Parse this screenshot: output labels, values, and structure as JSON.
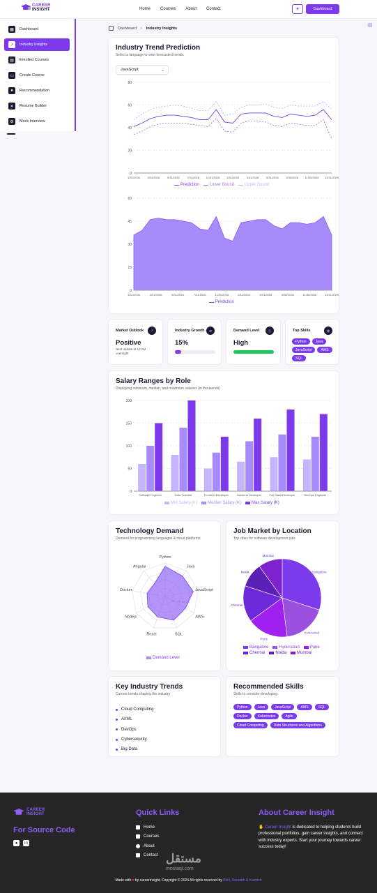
{
  "header": {
    "logo_line1": "CAREER",
    "logo_line2": "INSIGHT",
    "nav": [
      "Home",
      "Courses",
      "About",
      "Contact"
    ],
    "theme_icon": "sun-icon",
    "dashboard_label": "Dashboard"
  },
  "sidebar": {
    "items": [
      {
        "label": "Dashboard",
        "icon": "grid-icon",
        "active": false
      },
      {
        "label": "Industry Insights",
        "icon": "trend-icon",
        "active": true
      },
      {
        "label": "Enrolled Courses",
        "icon": "book-icon",
        "active": false
      },
      {
        "label": "Create Course",
        "icon": "file-icon",
        "active": false
      },
      {
        "label": "Recommendation",
        "icon": "user-icon",
        "active": false
      },
      {
        "label": "Resume Builder",
        "icon": "tools-icon",
        "active": false
      },
      {
        "label": "Mock Interview",
        "icon": "gear-icon",
        "active": false
      }
    ]
  },
  "breadcrumb": {
    "parent": "Dashboard",
    "current": "Industry Insights"
  },
  "trend": {
    "title": "Industry Trend Prediction",
    "subtitle": "Select a language to view forecasted trends.",
    "select_value": "JavaScript",
    "legend": [
      "Prediction",
      "Lower Bound",
      "Upper Bound"
    ],
    "area_legend": "Prediction"
  },
  "stats": {
    "outlook": {
      "title": "Market Outlook",
      "value": "Positive",
      "note": "Next update at 12 AM overnight"
    },
    "growth": {
      "title": "Industry Growth",
      "value": "15%",
      "progress": 0.15
    },
    "demand": {
      "title": "Demand Level",
      "value": "High",
      "progress": 1.0
    },
    "skills": {
      "title": "Top Skills",
      "items": [
        "Python",
        "Java",
        "JavaScript",
        "AWS",
        "SQL"
      ]
    }
  },
  "salary": {
    "title": "Salary Ranges by Role",
    "subtitle": "Displaying minimum, median, and maximum salaries (in thousands)",
    "legend": [
      "Min Salary (K)",
      "Median Salary (K)",
      "Max Salary (K)"
    ]
  },
  "tech": {
    "title": "Technology Demand",
    "subtitle": "Demand for programming languages & cloud platforms",
    "legend": "Demand Level"
  },
  "location": {
    "title": "Job Market by Location",
    "subtitle": "Top cities for software development jobs",
    "legend": [
      "Bangalore",
      "Hyderabad",
      "Pune",
      "Chennai",
      "Noida",
      "Mumbai"
    ]
  },
  "key_trends": {
    "title": "Key Industry Trends",
    "subtitle": "Current trends shaping the industry",
    "items": [
      "Cloud Computing",
      "AI/ML",
      "DevOps",
      "Cybersecurity",
      "Big Data"
    ]
  },
  "rec_skills": {
    "title": "Recommended Skills",
    "subtitle": "Skills to consider developing",
    "items": [
      "Python",
      "Java",
      "JavaScript",
      "AWS",
      "SQL",
      "Docker",
      "Kubernetes",
      "Agile",
      "Cloud Computing",
      "Data Structures and Algorithms"
    ]
  },
  "footer": {
    "source_label": "For Source Code",
    "quick_links_title": "Quick Links",
    "links": [
      "Home",
      "Courses",
      "About",
      "Contact"
    ],
    "about_title": "About Career Insight",
    "about_brand": "Career Insight",
    "about_text": " is dedicated to helping students build professional portfolios, gain career insights, and connect with industry experts. Start your journey towards career success today!",
    "copy_pre": "Made with",
    "copy_post": "by careerinsight, Copyright © 2024 All rights reserved by",
    "copy_names": "Binit, Saurabh & Kashish",
    "watermark": "مستقل",
    "watermark_sub": "mostaql.com"
  },
  "colors": {
    "accent": "#7c3aed",
    "light": "#c4b5fd",
    "mid": "#a78bfa",
    "green": "#22c55e"
  },
  "chart_data": [
    {
      "type": "line",
      "x": [
        "1/31/2026",
        "3/31/2026",
        "5/31/2026",
        "7/31/2026",
        "9/30/2026",
        "11/30/2026",
        "1/31/2027",
        "3/31/2027",
        "5/31/2027",
        "7/31/2027",
        "9/30/2027",
        "11/30/2027",
        "1/31/2028",
        "3/31/2028",
        "5/31/2028",
        "7/31/2028",
        "9/30/2028",
        "11/30/2028",
        "1/31/2029",
        "3/31/2029",
        "5/31/2029",
        "7/31/2029",
        "9/30/2029",
        "11/30/2029",
        "12/31/2029"
      ],
      "xticks": [
        "1/31/2026",
        "3/31/2026",
        "5/31/2026",
        "7/31/2026",
        "11/31/2026",
        "1/31/2028",
        "3/31/2028",
        "5/31/2028",
        "9/30/2028",
        "11/30/2028",
        "12/31/2029"
      ],
      "series": [
        {
          "name": "Prediction",
          "values": [
            41,
            44,
            48,
            50,
            51,
            51,
            50,
            49,
            47,
            47,
            56,
            45,
            44,
            52,
            53,
            53,
            53,
            50,
            49,
            52,
            51,
            50,
            51,
            56,
            47
          ]
        },
        {
          "name": "Lower Bound",
          "values": [
            34,
            37,
            41,
            43,
            44,
            44,
            44,
            43,
            42,
            41,
            48,
            37,
            36,
            44,
            46,
            46,
            45,
            42,
            41,
            44,
            43,
            42,
            42,
            47,
            30
          ]
        },
        {
          "name": "Upper Bound",
          "values": [
            47,
            52,
            56,
            58,
            59,
            60,
            59,
            57,
            55,
            55,
            63,
            51,
            52,
            58,
            60,
            60,
            61,
            58,
            57,
            60,
            59,
            59,
            59,
            63,
            56
          ]
        }
      ],
      "ylim": [
        0,
        80
      ],
      "yticks": [
        0,
        20,
        40,
        60,
        80
      ]
    },
    {
      "type": "area",
      "x": [
        "1/31/2026",
        "3/31/2026",
        "5/31/2026",
        "7/31/2026",
        "9/30/2026",
        "11/30/2026",
        "1/31/2027",
        "3/31/2027",
        "5/31/2027",
        "7/31/2027",
        "9/30/2027",
        "11/30/2027",
        "1/31/2028",
        "3/31/2028",
        "5/31/2028",
        "7/31/2028",
        "9/30/2028",
        "11/30/2028",
        "1/31/2029",
        "3/31/2029",
        "5/31/2029",
        "7/31/2029",
        "9/30/2029",
        "11/30/2029",
        "12/31/2029"
      ],
      "xticks": [
        "1/31/2026",
        "3/31/2026",
        "5/31/2026",
        "7/31/2026",
        "11/31/2026",
        "1/31/2028",
        "5/31/2028",
        "9/30/2028",
        "11/30/2028",
        "12/31/2029"
      ],
      "series": [
        {
          "name": "Prediction",
          "values": [
            36,
            39,
            46,
            47,
            46,
            46,
            45,
            44,
            40,
            39,
            48,
            34,
            32,
            44,
            45,
            46,
            46,
            42,
            40,
            44,
            44,
            43,
            44,
            48,
            36
          ]
        }
      ],
      "ylim": [
        0,
        60
      ],
      "yticks": [
        0,
        15,
        30,
        45,
        60
      ]
    },
    {
      "type": "bar",
      "categories": [
        "Software Engineer",
        "Data Scientist",
        "Frontend Developer",
        "Backend Developer",
        "Full Stack Developer",
        "DevOps Engineer"
      ],
      "series": [
        {
          "name": "Min Salary (K)",
          "values": [
            60,
            80,
            50,
            65,
            75,
            70
          ]
        },
        {
          "name": "Median Salary (K)",
          "values": [
            100,
            140,
            85,
            110,
            125,
            120
          ]
        },
        {
          "name": "Max Salary (K)",
          "values": [
            150,
            200,
            120,
            160,
            180,
            170
          ]
        }
      ],
      "ylim": [
        0,
        200
      ],
      "yticks": [
        0,
        50,
        100,
        150,
        200
      ]
    },
    {
      "type": "radar",
      "categories": [
        "Python",
        "Java",
        "JavaScript",
        "AWS",
        "SQL",
        "React",
        "Nodejs",
        "Docker",
        "Angular"
      ],
      "rticks": [
        "0",
        "25",
        "50",
        "75"
      ],
      "series": [
        {
          "name": "Demand Level",
          "values": [
            90,
            80,
            85,
            70,
            75,
            65,
            60,
            55,
            50
          ]
        }
      ],
      "rmax": 100
    },
    {
      "type": "pie",
      "labels": [
        "Bangalore",
        "Hyderabad",
        "Pune",
        "Chennai",
        "Noida",
        "Mumbai"
      ],
      "values": [
        30,
        18,
        17,
        15,
        10,
        10
      ],
      "colors": [
        "#7c3aed",
        "#9b51e0",
        "#a020f0",
        "#6d28d9",
        "#5b21b6",
        "#7e22ce"
      ]
    }
  ]
}
